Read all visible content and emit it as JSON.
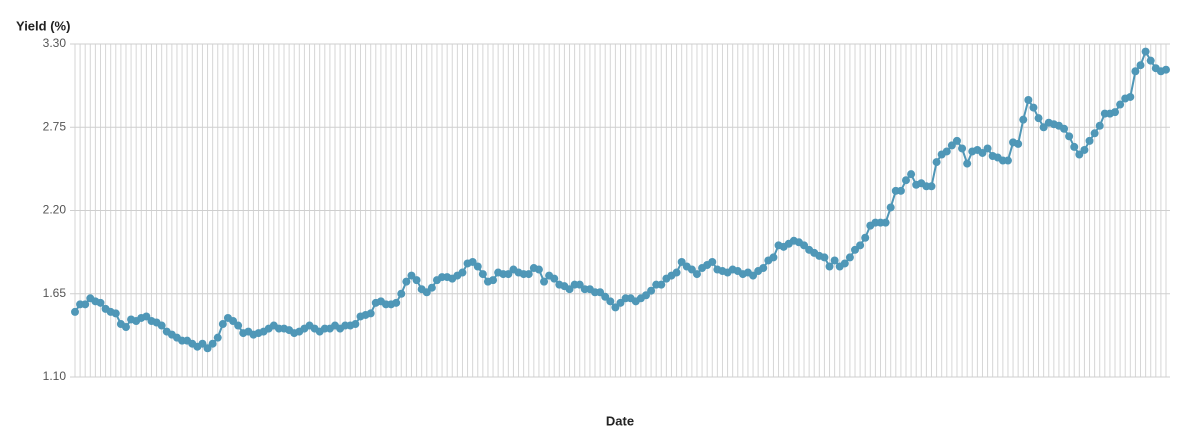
{
  "chart_data": {
    "type": "line",
    "y_label": "Yield (%)",
    "x_label": "Date",
    "categories": [
      null,
      null,
      null,
      null,
      null,
      null,
      null,
      null,
      null,
      null,
      null,
      null,
      null,
      null,
      null,
      null,
      null,
      null,
      null,
      null,
      null,
      null,
      null,
      null,
      null,
      null,
      null,
      null,
      null,
      null,
      null,
      null,
      null,
      null,
      null,
      null,
      null,
      null,
      null,
      null,
      null,
      null,
      null,
      null,
      null,
      null,
      null,
      null,
      null,
      null,
      null,
      null,
      null,
      null,
      null,
      null,
      null,
      null,
      null,
      null,
      null,
      null,
      null,
      null,
      null,
      null,
      null,
      null,
      null,
      null,
      null,
      null,
      null,
      null,
      null,
      null,
      null,
      null,
      null,
      null,
      null,
      null,
      null,
      null,
      null,
      null,
      null,
      null,
      null,
      null,
      null,
      null,
      null,
      null,
      null,
      null,
      null,
      null,
      null,
      null,
      null,
      null,
      null,
      null,
      null,
      null,
      null,
      null,
      null,
      null,
      null,
      null,
      null,
      null,
      null,
      null,
      null,
      null,
      null,
      null,
      null,
      null,
      null,
      null,
      null,
      null,
      null,
      null,
      null,
      null,
      null,
      null,
      null,
      null,
      null,
      null,
      null,
      null,
      null,
      null,
      null,
      null,
      null,
      null,
      null,
      null,
      null,
      null,
      null,
      null,
      null,
      null,
      null,
      null,
      null,
      null,
      null,
      null,
      null,
      null,
      null,
      null,
      null,
      null,
      null,
      null,
      null,
      null,
      null,
      null,
      null,
      null,
      null,
      null,
      null,
      null,
      null,
      null,
      null,
      null,
      null,
      null,
      null,
      null,
      null,
      null,
      null,
      null,
      null,
      null,
      null,
      null,
      null,
      null,
      null,
      null,
      null,
      null,
      null,
      null,
      null,
      null,
      null,
      null,
      null,
      null,
      null,
      null,
      null,
      null,
      null,
      null,
      null,
      null,
      null
    ],
    "series": [
      {
        "name": "Yield",
        "color": "#4f97b7",
        "values": [
          1.53,
          1.58,
          1.58,
          1.62,
          1.6,
          1.59,
          1.55,
          1.53,
          1.52,
          1.45,
          1.43,
          1.48,
          1.47,
          1.49,
          1.5,
          1.47,
          1.46,
          1.44,
          1.4,
          1.38,
          1.36,
          1.34,
          1.34,
          1.32,
          1.3,
          1.32,
          1.29,
          1.32,
          1.36,
          1.45,
          1.49,
          1.47,
          1.44,
          1.39,
          1.4,
          1.38,
          1.39,
          1.4,
          1.42,
          1.44,
          1.42,
          1.42,
          1.41,
          1.39,
          1.4,
          1.42,
          1.44,
          1.42,
          1.4,
          1.42,
          1.42,
          1.44,
          1.42,
          1.44,
          1.44,
          1.45,
          1.5,
          1.51,
          1.52,
          1.59,
          1.6,
          1.58,
          1.58,
          1.59,
          1.65,
          1.73,
          1.77,
          1.74,
          1.68,
          1.66,
          1.69,
          1.74,
          1.76,
          1.76,
          1.75,
          1.77,
          1.79,
          1.85,
          1.86,
          1.83,
          1.78,
          1.73,
          1.74,
          1.79,
          1.78,
          1.78,
          1.81,
          1.79,
          1.78,
          1.78,
          1.82,
          1.81,
          1.73,
          1.77,
          1.75,
          1.71,
          1.7,
          1.68,
          1.71,
          1.71,
          1.68,
          1.68,
          1.66,
          1.66,
          1.63,
          1.6,
          1.56,
          1.59,
          1.62,
          1.62,
          1.6,
          1.62,
          1.64,
          1.67,
          1.71,
          1.71,
          1.75,
          1.77,
          1.79,
          1.86,
          1.83,
          1.81,
          1.78,
          1.82,
          1.84,
          1.86,
          1.81,
          1.8,
          1.79,
          1.81,
          1.8,
          1.78,
          1.79,
          1.77,
          1.8,
          1.82,
          1.87,
          1.89,
          1.97,
          1.96,
          1.98,
          2.0,
          1.99,
          1.97,
          1.94,
          1.92,
          1.9,
          1.89,
          1.83,
          1.87,
          1.83,
          1.85,
          1.89,
          1.94,
          1.97,
          2.02,
          2.1,
          2.12,
          2.12,
          2.12,
          2.22,
          2.33,
          2.33,
          2.4,
          2.44,
          2.37,
          2.38,
          2.36,
          2.36,
          2.52,
          2.57,
          2.59,
          2.63,
          2.66,
          2.61,
          2.51,
          2.59,
          2.6,
          2.58,
          2.61,
          2.56,
          2.55,
          2.53,
          2.53,
          2.65,
          2.64,
          2.8,
          2.93,
          2.88,
          2.81,
          2.75,
          2.78,
          2.77,
          2.76,
          2.74,
          2.69,
          2.62,
          2.57,
          2.6,
          2.66,
          2.71,
          2.76,
          2.84,
          2.84,
          2.85,
          2.9,
          2.94,
          2.95,
          3.12,
          3.16,
          3.25,
          3.19,
          3.14,
          3.12,
          3.13
        ]
      }
    ],
    "ylim": [
      1.1,
      3.3
    ],
    "yticks": [
      {
        "value": 1.1,
        "label": "1.10"
      },
      1.65,
      {
        "value": 2.2,
        "label": "2.20"
      },
      2.75,
      {
        "value": 3.3,
        "label": "3.30"
      }
    ],
    "grid": true
  }
}
